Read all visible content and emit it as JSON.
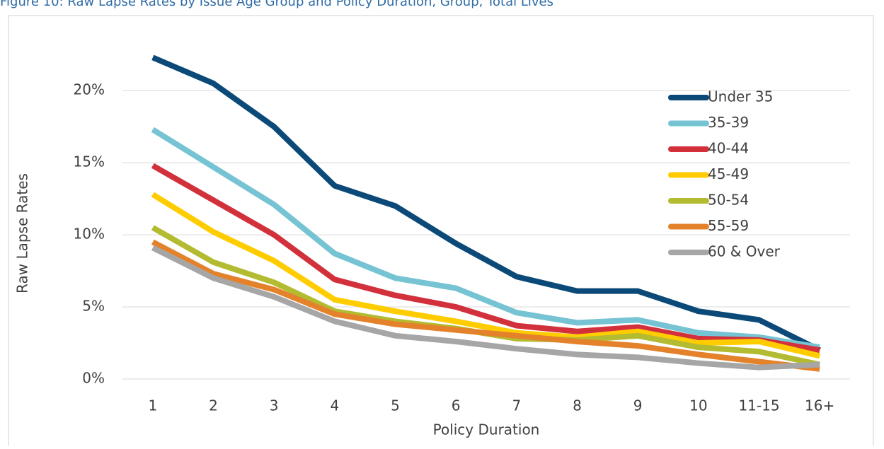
{
  "chart_data": {
    "type": "line",
    "title": "Figure 10: Raw Lapse Rates by Issue Age Group and Policy Duration, Group, Total Lives",
    "x_label": "Policy Duration",
    "y_label": "Raw Lapse Rates",
    "categories": [
      "1",
      "2",
      "3",
      "4",
      "5",
      "6",
      "7",
      "8",
      "9",
      "10",
      "11-15",
      "16+"
    ],
    "ylim": [
      0,
      23
    ],
    "yticks": [
      {
        "value": 0,
        "label": "0%"
      },
      {
        "value": 5,
        "label": "5%"
      },
      {
        "value": 10,
        "label": "10%"
      },
      {
        "value": 15,
        "label": "15%"
      },
      {
        "value": 20,
        "label": "20%"
      }
    ],
    "grid": true,
    "legend": "top-right",
    "series": [
      {
        "name": "Under 35",
        "color": "#0b4a78",
        "values": [
          22.3,
          20.5,
          17.5,
          13.4,
          12.0,
          9.4,
          7.1,
          6.1,
          6.1,
          4.7,
          4.1,
          2.0
        ]
      },
      {
        "name": "35-39",
        "color": "#75c3d3",
        "values": [
          17.3,
          14.7,
          12.1,
          8.7,
          7.0,
          6.3,
          4.6,
          3.9,
          4.1,
          3.2,
          2.9,
          2.2
        ]
      },
      {
        "name": "40-44",
        "color": "#d2313c",
        "values": [
          14.8,
          12.4,
          10.0,
          6.9,
          5.8,
          5.0,
          3.7,
          3.3,
          3.6,
          2.8,
          2.7,
          2.0
        ]
      },
      {
        "name": "45-49",
        "color": "#ffcc00",
        "values": [
          12.8,
          10.2,
          8.2,
          5.5,
          4.7,
          4.0,
          3.2,
          2.9,
          3.3,
          2.5,
          2.6,
          1.6
        ]
      },
      {
        "name": "50-54",
        "color": "#b3bb30",
        "values": [
          10.5,
          8.1,
          6.7,
          4.7,
          4.0,
          3.5,
          2.8,
          2.7,
          3.0,
          2.2,
          1.9,
          1.0
        ]
      },
      {
        "name": "55-59",
        "color": "#e4822b",
        "values": [
          9.5,
          7.3,
          6.2,
          4.5,
          3.8,
          3.4,
          3.0,
          2.6,
          2.3,
          1.7,
          1.2,
          0.7
        ]
      },
      {
        "name": "60 & Over",
        "color": "#a6a6a6",
        "values": [
          9.1,
          7.0,
          5.7,
          4.0,
          3.0,
          2.6,
          2.1,
          1.7,
          1.5,
          1.1,
          0.8,
          1.0
        ]
      }
    ]
  }
}
